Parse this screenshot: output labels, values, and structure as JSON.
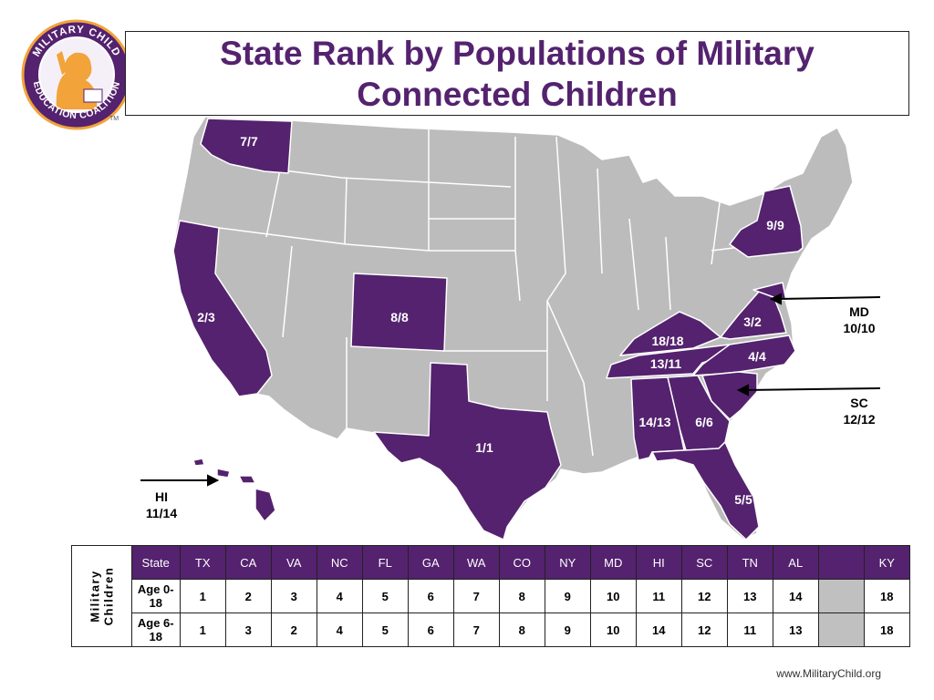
{
  "title": "State Rank by Populations of Military Connected Children",
  "title_lines": [
    "State Rank by Populations of Military",
    "Connected Children"
  ],
  "logo": {
    "ring_text_top": "MILITARY CHILD",
    "ring_text_bottom": "EDUCATION COALITION",
    "tm": "TM"
  },
  "colors": {
    "highlight": "#54226e",
    "other": "#bcbcbc",
    "border": "#ffffff",
    "title": "#54226e"
  },
  "map_labels": [
    {
      "state": "WA",
      "text": "7/7",
      "color": "white"
    },
    {
      "state": "CA",
      "text": "2/3",
      "color": "white"
    },
    {
      "state": "CO",
      "text": "8/8",
      "color": "white"
    },
    {
      "state": "TX",
      "text": "1/1",
      "color": "white"
    },
    {
      "state": "NY",
      "text": "9/9",
      "color": "white"
    },
    {
      "state": "VA",
      "text": "3/2",
      "color": "white"
    },
    {
      "state": "KY",
      "text": "18/18",
      "color": "white"
    },
    {
      "state": "TN",
      "text": "13/11",
      "color": "white"
    },
    {
      "state": "NC",
      "text": "4/4",
      "color": "white"
    },
    {
      "state": "AL",
      "text": "14/13",
      "color": "white"
    },
    {
      "state": "GA",
      "text": "6/6",
      "color": "white"
    },
    {
      "state": "FL",
      "text": "5/5",
      "color": "white"
    }
  ],
  "callouts": {
    "md": {
      "line1": "MD",
      "line2": "10/10"
    },
    "sc": {
      "line1": "SC",
      "line2": "12/12"
    },
    "hi": {
      "line1": "HI",
      "line2": "11/14"
    }
  },
  "table": {
    "side_label": [
      "Military",
      "Children"
    ],
    "header_label": "State",
    "states": [
      "TX",
      "CA",
      "VA",
      "NC",
      "FL",
      "GA",
      "WA",
      "CO",
      "NY",
      "MD",
      "HI",
      "SC",
      "TN",
      "AL",
      "",
      "KY"
    ],
    "rows": [
      {
        "label": "Age 0-18",
        "values": [
          "1",
          "2",
          "3",
          "4",
          "5",
          "6",
          "7",
          "8",
          "9",
          "10",
          "11",
          "12",
          "13",
          "14",
          "",
          "18"
        ]
      },
      {
        "label": "Age 6-18",
        "values": [
          "1",
          "3",
          "2",
          "4",
          "5",
          "6",
          "7",
          "8",
          "9",
          "10",
          "14",
          "12",
          "11",
          "13",
          "",
          "18"
        ]
      }
    ]
  },
  "footer": "www.MilitaryChild.org"
}
